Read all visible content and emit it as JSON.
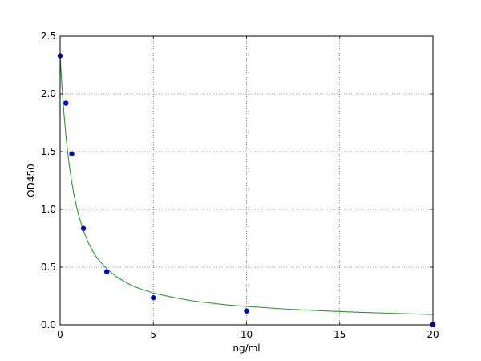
{
  "chart_data": {
    "type": "scatter",
    "title": "",
    "xlabel": "ng/ml",
    "ylabel": "OD450",
    "xlim": [
      0,
      20
    ],
    "ylim": [
      0.0,
      2.5
    ],
    "xticks": [
      0,
      5,
      10,
      15,
      20
    ],
    "xtick_labels": [
      "0",
      "5",
      "10",
      "15",
      "20"
    ],
    "yticks": [
      0.0,
      0.5,
      1.0,
      1.5,
      2.0,
      2.5
    ],
    "ytick_labels": [
      "0.0",
      "0.5",
      "1.0",
      "1.5",
      "2.0",
      "2.5"
    ],
    "grid": true,
    "legend": "none",
    "series": [
      {
        "kind": "points",
        "color": "#0000cc",
        "x": [
          0,
          0.3125,
          0.625,
          1.25,
          2.5,
          5,
          10,
          20
        ],
        "y": [
          2.33,
          1.92,
          1.48,
          0.835,
          0.46,
          0.235,
          0.12,
          0.003
        ]
      },
      {
        "kind": "fitted-curve",
        "color": "#2a9a2a",
        "x": [
          0,
          0.05,
          0.1,
          0.2,
          0.3,
          0.4,
          0.5,
          0.625,
          0.75,
          0.9,
          1.0,
          1.25,
          1.5,
          1.75,
          2.0,
          2.5,
          3.0,
          3.5,
          4.0,
          5.0,
          6.0,
          7.0,
          8.0,
          9.0,
          10.0,
          12.0,
          14.0,
          16.0,
          18.0,
          20.0
        ],
        "y": [
          2.33,
          2.19,
          2.06,
          1.84,
          1.655,
          1.5,
          1.37,
          1.235,
          1.12,
          1.01,
          0.945,
          0.815,
          0.715,
          0.64,
          0.575,
          0.485,
          0.42,
          0.37,
          0.33,
          0.275,
          0.24,
          0.21,
          0.19,
          0.172,
          0.16,
          0.138,
          0.122,
          0.109,
          0.099,
          0.09
        ]
      }
    ]
  }
}
